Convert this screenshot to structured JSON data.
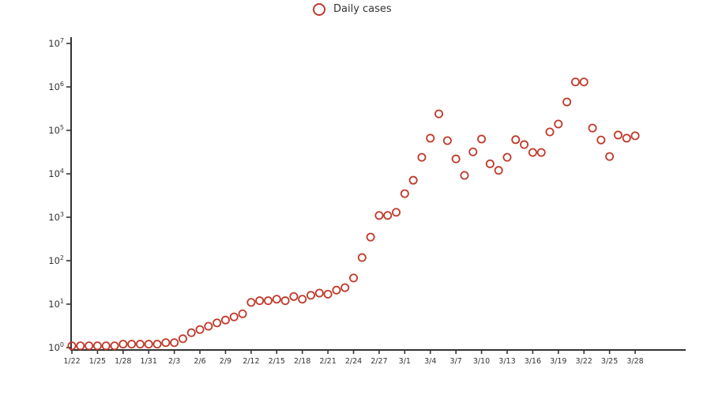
{
  "legend": {
    "label": "Daily cases",
    "marker": "open-circle",
    "marker_color": "#c0392b"
  },
  "colors": {
    "background": "#ffffff",
    "axis": "#333333",
    "text": "#333333",
    "marker_edge": "#c0392b"
  },
  "chart_data": {
    "type": "scatter",
    "title": "",
    "legend_entries": [
      "Daily cases"
    ],
    "xlabel": "",
    "ylabel": "",
    "yscale": "log",
    "ylim": [
      1,
      10000000
    ],
    "y_tick_exponents": [
      0,
      1,
      2,
      3,
      4,
      5,
      6,
      7
    ],
    "y_tick_base": "10",
    "grid": false,
    "legend_position": "top-center",
    "x_tick_step_days": 3,
    "x_tick_labels": [
      "1/22",
      "1/25",
      "1/28",
      "1/31",
      "2/3",
      "2/6",
      "2/9",
      "2/12",
      "2/15",
      "2/18",
      "2/21",
      "2/24",
      "2/27",
      "3/1",
      "3/4",
      "3/7",
      "3/10",
      "3/13",
      "3/16",
      "3/19",
      "3/22",
      "3/25",
      "3/28"
    ],
    "dates": [
      "1/22",
      "1/23",
      "1/24",
      "1/25",
      "1/26",
      "1/27",
      "1/28",
      "1/29",
      "1/30",
      "1/31",
      "2/1",
      "2/2",
      "2/3",
      "2/4",
      "2/5",
      "2/6",
      "2/7",
      "2/8",
      "2/9",
      "2/10",
      "2/11",
      "2/12",
      "2/13",
      "2/14",
      "2/15",
      "2/16",
      "2/17",
      "2/18",
      "2/19",
      "2/20",
      "2/21",
      "2/22",
      "2/23",
      "2/24",
      "2/25",
      "2/26",
      "2/27",
      "2/28",
      "2/29",
      "3/1",
      "3/2",
      "3/3",
      "3/4",
      "3/5",
      "3/6",
      "3/7",
      "3/8",
      "3/9",
      "3/10",
      "3/11",
      "3/12",
      "3/13",
      "3/14",
      "3/15",
      "3/16",
      "3/17",
      "3/18",
      "3/19",
      "3/20",
      "3/21",
      "3/22",
      "3/23",
      "3/24",
      "3/25",
      "3/26",
      "3/27",
      "3/28"
    ],
    "values": [
      1.1,
      1.1,
      1.1,
      1.1,
      1.1,
      1.1,
      1.2,
      1.2,
      1.2,
      1.2,
      1.2,
      1.3,
      1.3,
      1.6,
      2.2,
      2.6,
      3.1,
      3.7,
      4.3,
      5.1,
      6.0,
      11,
      12,
      12,
      13,
      12,
      15,
      13,
      16,
      18,
      17,
      21,
      24,
      40,
      118,
      350,
      1100,
      1100,
      1300,
      3500,
      7100,
      24000,
      66000,
      240000,
      58000,
      22000,
      9200,
      32000,
      63000,
      17000,
      12000,
      24000,
      61000,
      47000,
      31000,
      31000,
      92000,
      140000,
      450000,
      1300000,
      1300000,
      113000,
      60000,
      25000,
      78000,
      66000,
      75000
    ]
  }
}
